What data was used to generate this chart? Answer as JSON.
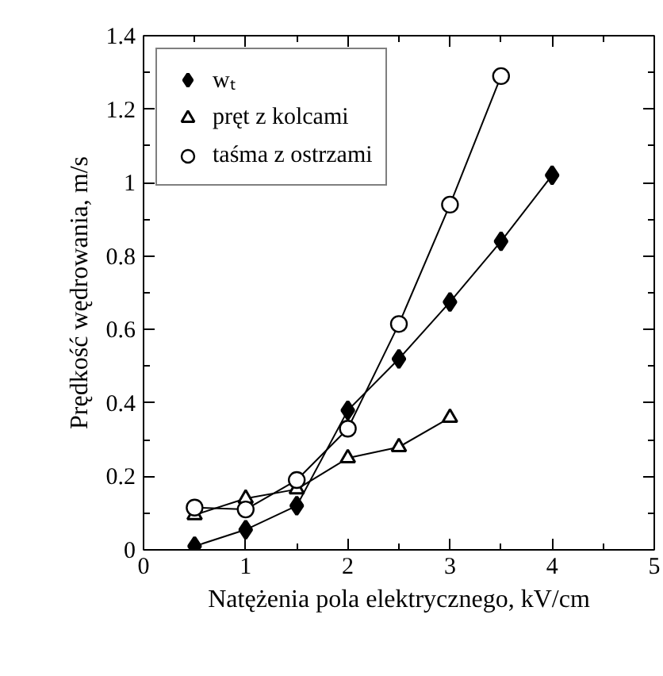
{
  "chart_data": {
    "type": "line",
    "xlabel": "Natężenia pola elektrycznego, kV/cm",
    "ylabel": "Prędkość wędrowania, m/s",
    "x": [
      0.5,
      1,
      1.5,
      2,
      2.5,
      3,
      3.5,
      4
    ],
    "series": [
      {
        "name": "wₜ",
        "color": "#000000",
        "marker": "diamond",
        "values": [
          0.01,
          0.055,
          0.12,
          0.38,
          0.52,
          0.675,
          0.84,
          1.02
        ]
      },
      {
        "name": "pręt z kolcami",
        "color": "#000000",
        "marker": "triangle",
        "values": [
          0.095,
          0.14,
          0.165,
          0.25,
          0.28,
          0.36,
          null,
          null
        ]
      },
      {
        "name": "taśma z ostrzami",
        "color": "#000000",
        "marker": "circle",
        "values": [
          0.115,
          0.11,
          0.19,
          0.33,
          0.615,
          0.94,
          1.29,
          null
        ]
      }
    ],
    "xlim": [
      0,
      5
    ],
    "xticks": [
      0,
      1,
      2,
      3,
      4,
      5
    ],
    "ylim": [
      0,
      1.4
    ],
    "yticks": [
      0,
      0.2,
      0.4,
      0.6,
      0.8,
      1,
      1.2,
      1.4
    ],
    "grid": false,
    "legend": "top left",
    "line_style": "solid"
  }
}
